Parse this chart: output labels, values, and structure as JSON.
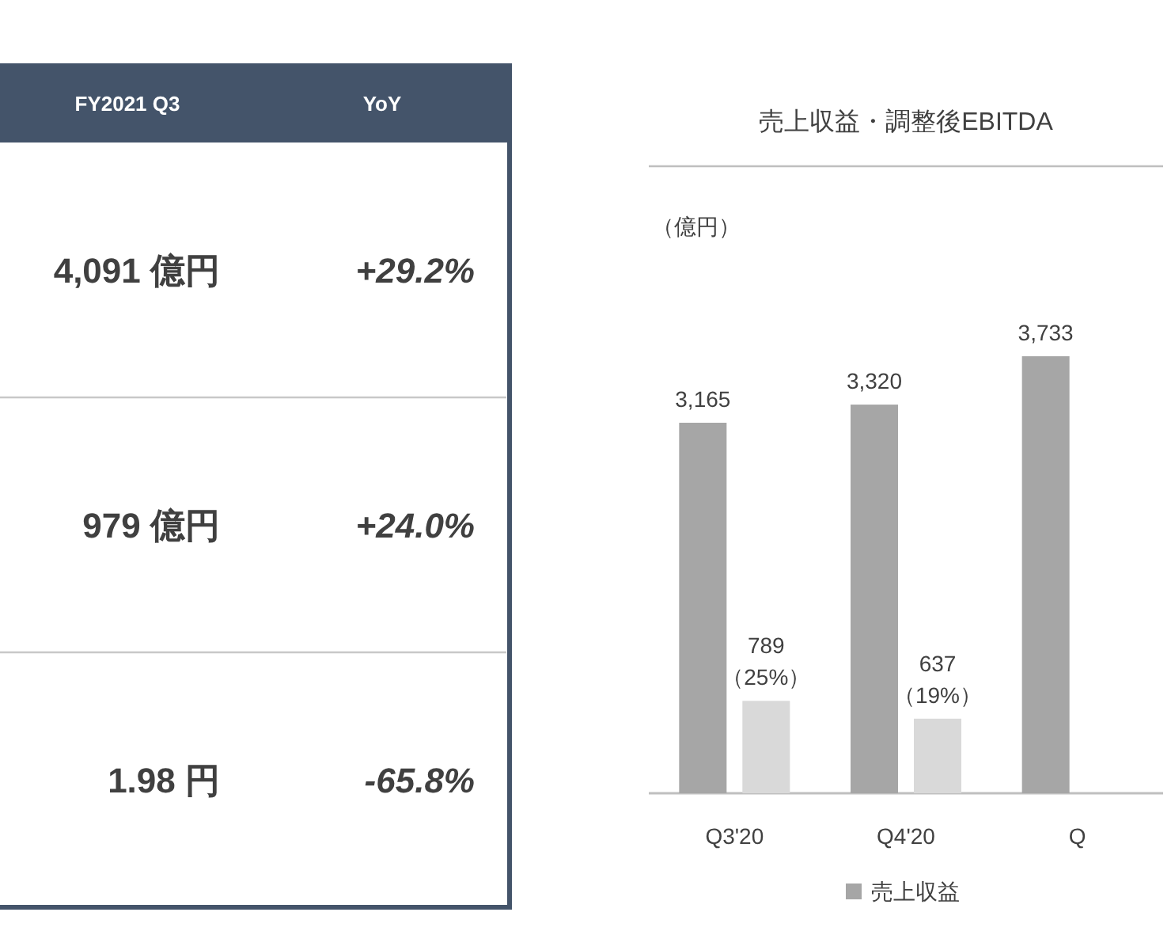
{
  "chart_data": [
    {
      "type": "other",
      "categories": [
        "FY2021 Q3",
        "YoY"
      ],
      "annotations": [
        "4,091 億円",
        "+29.2%",
        "979 億円",
        "+24.0%",
        "1.98 円",
        "-65.8%"
      ]
    },
    {
      "type": "bar",
      "title": "売上収益・調整後EBITDA",
      "ylabel": "（億円）",
      "categories": [
        "Q3'20",
        "Q4'20",
        "Q"
      ],
      "series": [
        {
          "name": "売上収益",
          "color": "#a6a6a6",
          "values": [
            3165,
            3320,
            3733
          ],
          "value_labels": [
            "3,165",
            "3,320",
            "3,733"
          ]
        },
        {
          "color": "#d9d9d9",
          "values": [
            789,
            637,
            null
          ],
          "value_labels": [
            "789\n（25%）",
            "637\n（19%）",
            null
          ]
        }
      ],
      "legend": "bottom"
    }
  ]
}
